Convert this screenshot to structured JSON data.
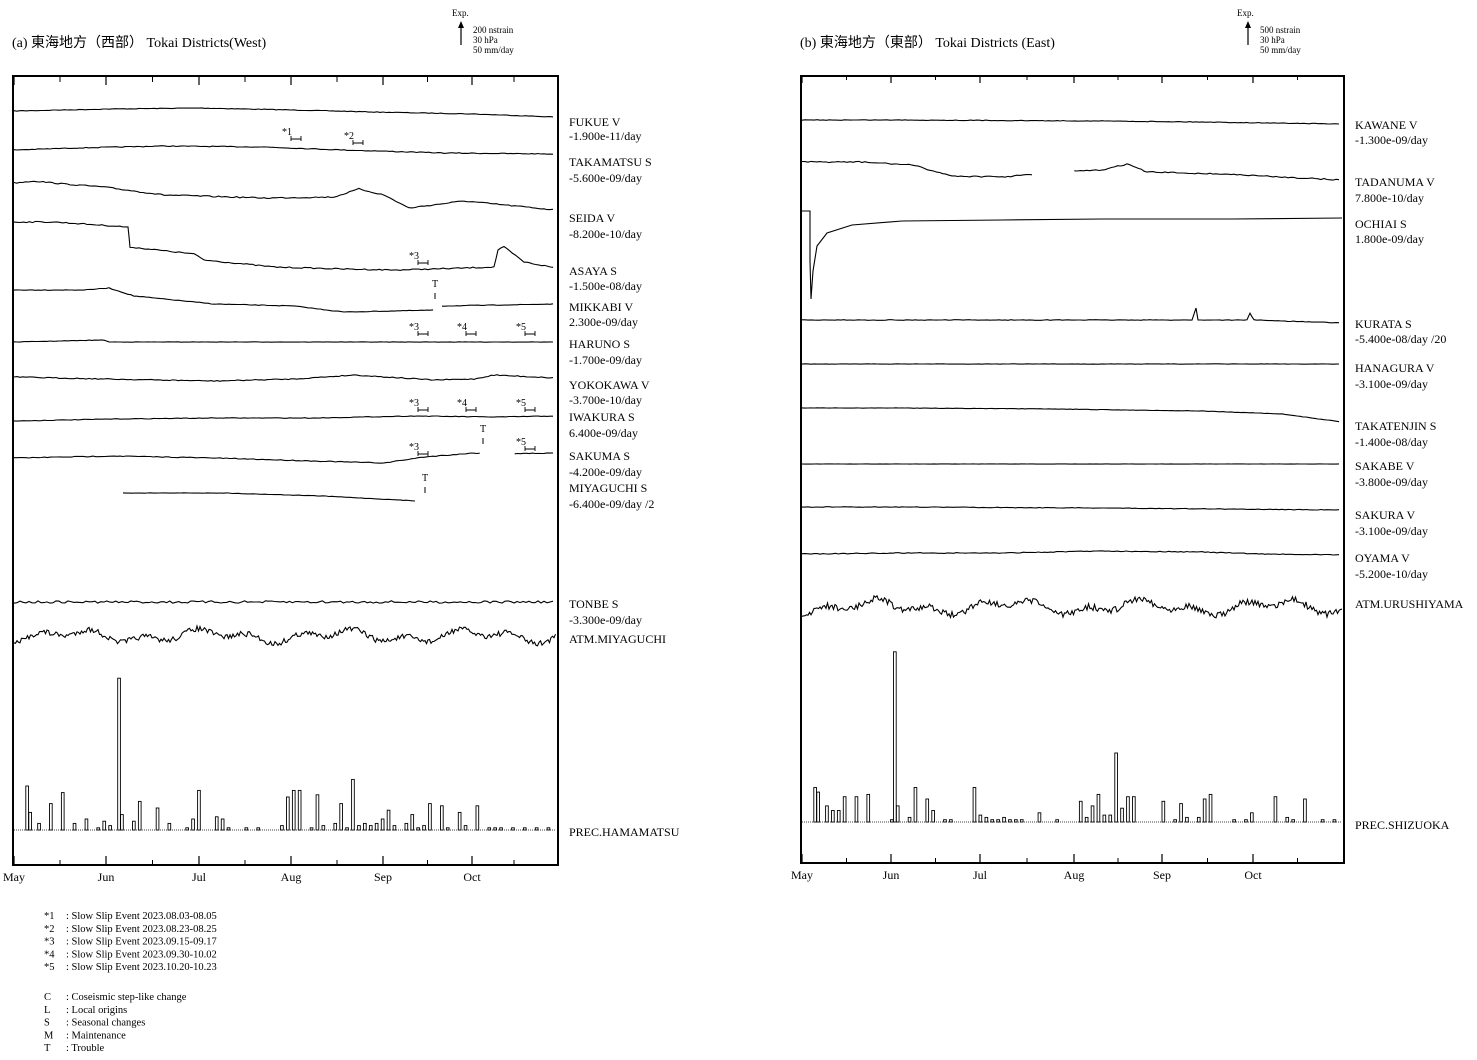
{
  "charts": [
    {
      "title": "(a) 東海地方（西部） Tokai Districts(West)",
      "scale": {
        "exp": "Exp.",
        "lines": [
          "200 nstrain",
          "30 hPa",
          "50 mm/day"
        ]
      },
      "months": [
        "May",
        "Jun",
        "Jul",
        "Aug",
        "Sep",
        "Oct"
      ],
      "stations": [
        {
          "name": "FUKUE V",
          "rate": "-1.900e-11/day"
        },
        {
          "name": "TAKAMATSU S",
          "rate": "-5.600e-09/day"
        },
        {
          "name": "SEIDA V",
          "rate": "-8.200e-10/day"
        },
        {
          "name": "ASAYA S",
          "rate": "-1.500e-08/day"
        },
        {
          "name": "MIKKABI V",
          "rate": "2.300e-09/day"
        },
        {
          "name": "HARUNO S",
          "rate": "-1.700e-09/day"
        },
        {
          "name": "YOKOKAWA V",
          "rate": "-3.700e-10/day"
        },
        {
          "name": "IWAKURA S",
          "rate": "6.400e-09/day"
        },
        {
          "name": "SAKUMA S",
          "rate": "-4.200e-09/day"
        },
        {
          "name": "MIYAGUCHI S",
          "rate": "-6.400e-09/day /2"
        },
        {
          "name": "TONBE S",
          "rate": "-3.300e-09/day"
        },
        {
          "name": "ATM.MIYAGUCHI",
          "rate": ""
        },
        {
          "name": "PREC.HAMAMATSU",
          "rate": ""
        }
      ],
      "marks": [
        "*1",
        "*2",
        "*3",
        "*4",
        "*5",
        "*3",
        "*4",
        "*5",
        "*3",
        "*5",
        "T",
        "T",
        "T"
      ]
    },
    {
      "title": "(b) 東海地方（東部） Tokai Districts (East)",
      "scale": {
        "exp": "Exp.",
        "lines": [
          "500 nstrain",
          "30 hPa",
          "50 mm/day"
        ]
      },
      "months": [
        "May",
        "Jun",
        "Jul",
        "Aug",
        "Sep",
        "Oct"
      ],
      "stations": [
        {
          "name": "KAWANE V",
          "rate": "-1.300e-09/day"
        },
        {
          "name": "TADANUMA V",
          "rate": "7.800e-10/day"
        },
        {
          "name": "OCHIAI S",
          "rate": "1.800e-09/day"
        },
        {
          "name": "KURATA S",
          "rate": "-5.400e-08/day /20"
        },
        {
          "name": "HANAGURA V",
          "rate": "-3.100e-09/day"
        },
        {
          "name": "TAKATENJIN S",
          "rate": "-1.400e-08/day"
        },
        {
          "name": "SAKABE V",
          "rate": "-3.800e-09/day"
        },
        {
          "name": "SAKURA V",
          "rate": "-3.100e-09/day"
        },
        {
          "name": "OYAMA V",
          "rate": "-5.200e-10/day"
        },
        {
          "name": "ATM.URUSHIYAMA",
          "rate": ""
        },
        {
          "name": "PREC.SHIZUOKA",
          "rate": ""
        }
      ]
    }
  ],
  "legend_events": [
    {
      "code": "*1",
      "text": ": Slow Slip Event  2023.08.03-08.05"
    },
    {
      "code": "*2",
      "text": ": Slow Slip Event  2023.08.23-08.25"
    },
    {
      "code": "*3",
      "text": ": Slow Slip Event  2023.09.15-09.17"
    },
    {
      "code": "*4",
      "text": ": Slow Slip Event  2023.09.30-10.02"
    },
    {
      "code": "*5",
      "text": ": Slow Slip Event  2023.10.20-10.23"
    }
  ],
  "legend_codes": [
    {
      "code": "C",
      "text": ": Coseismic step-like change"
    },
    {
      "code": "L",
      "text": ": Local origins"
    },
    {
      "code": "S",
      "text": ": Seasonal changes"
    },
    {
      "code": "M",
      "text": ": Maintenance"
    },
    {
      "code": "T",
      "text": ": Trouble"
    }
  ],
  "chart_data": [
    {
      "type": "line",
      "title": "(a) 東海地方（西部） Tokai Districts(West)",
      "x_categories": [
        "May",
        "Jun",
        "Jul",
        "Aug",
        "Sep",
        "Oct"
      ],
      "series": [
        {
          "name": "FUKUE V",
          "values": [
            0,
            0,
            0,
            0,
            0,
            0
          ]
        },
        {
          "name": "TAKAMATSU S",
          "values": [
            0,
            0,
            0,
            0,
            0,
            0
          ]
        },
        {
          "name": "SEIDA V",
          "values": [
            0,
            0,
            0,
            0,
            0,
            0
          ]
        },
        {
          "name": "ASAYA S",
          "values": [
            0,
            0,
            0,
            0,
            0,
            0
          ]
        },
        {
          "name": "MIKKABI V",
          "values": [
            0,
            0,
            0,
            0,
            0,
            0
          ]
        },
        {
          "name": "HARUNO S",
          "values": [
            0,
            0,
            0,
            0,
            0,
            0
          ]
        },
        {
          "name": "YOKOKAWA V",
          "values": [
            0,
            0,
            0,
            0,
            0,
            0
          ]
        },
        {
          "name": "IWAKURA S",
          "values": [
            0,
            0,
            0,
            0,
            0,
            0
          ]
        },
        {
          "name": "SAKUMA S",
          "values": [
            0,
            0,
            0,
            0,
            0,
            0
          ]
        },
        {
          "name": "MIYAGUCHI S",
          "values": [
            0,
            0,
            0,
            0,
            0,
            0
          ]
        },
        {
          "name": "TONBE S",
          "values": [
            0,
            0,
            0,
            0,
            0,
            0
          ]
        },
        {
          "name": "ATM.MIYAGUCHI",
          "values": [
            0,
            0,
            0,
            0,
            0,
            0
          ]
        }
      ],
      "precipitation": {
        "name": "PREC.HAMAMATSU",
        "unit": "mm/day",
        "days": [
          4,
          5,
          8,
          12,
          16,
          20,
          24,
          28,
          30,
          32,
          35,
          36,
          40,
          42,
          48,
          52,
          58,
          60,
          62,
          68,
          70,
          72,
          78,
          82,
          90,
          92,
          94,
          96,
          100,
          102,
          104,
          108,
          110,
          112,
          114,
          116,
          118,
          120,
          122,
          124,
          126,
          128,
          132,
          134,
          136,
          138,
          140,
          144,
          146,
          150,
          152,
          156,
          160,
          162,
          164,
          168,
          172,
          176,
          180
        ],
        "values": [
          20,
          8,
          3,
          12,
          17,
          3,
          5,
          1,
          4,
          2,
          69,
          7,
          4,
          13,
          10,
          3,
          1,
          5,
          18,
          6,
          5,
          1,
          1,
          1,
          2,
          15,
          18,
          18,
          1,
          16,
          2,
          3,
          12,
          1,
          23,
          2,
          3,
          2,
          3,
          5,
          9,
          2,
          3,
          7,
          1,
          2,
          12,
          11,
          1,
          8,
          2,
          11,
          1,
          1,
          1,
          1,
          1,
          1,
          1
        ]
      }
    },
    {
      "type": "line",
      "title": "(b) 東海地方（東部） Tokai Districts (East)",
      "x_categories": [
        "May",
        "Jun",
        "Jul",
        "Aug",
        "Sep",
        "Oct"
      ],
      "series": [
        {
          "name": "KAWANE V",
          "values": [
            0,
            0,
            0,
            0,
            0,
            0
          ]
        },
        {
          "name": "TADANUMA V",
          "values": [
            0,
            0,
            0,
            0,
            0,
            0
          ]
        },
        {
          "name": "OCHIAI S",
          "values": [
            0,
            0,
            0,
            0,
            0,
            0
          ]
        },
        {
          "name": "KURATA S",
          "values": [
            0,
            0,
            0,
            0,
            0,
            0
          ]
        },
        {
          "name": "HANAGURA V",
          "values": [
            0,
            0,
            0,
            0,
            0,
            0
          ]
        },
        {
          "name": "TAKATENJIN S",
          "values": [
            0,
            0,
            0,
            0,
            0,
            0
          ]
        },
        {
          "name": "SAKABE V",
          "values": [
            0,
            0,
            0,
            0,
            0,
            0
          ]
        },
        {
          "name": "SAKURA V",
          "values": [
            0,
            0,
            0,
            0,
            0,
            0
          ]
        },
        {
          "name": "OYAMA V",
          "values": [
            0,
            0,
            0,
            0,
            0,
            0
          ]
        },
        {
          "name": "ATM.URUSHIYAMA",
          "values": [
            0,
            0,
            0,
            0,
            0,
            0
          ]
        }
      ],
      "precipitation": {
        "name": "PREC.SHIZUOKA",
        "unit": "mm/day",
        "days": [
          4,
          5,
          8,
          10,
          12,
          14,
          18,
          22,
          30,
          31,
          32,
          36,
          38,
          42,
          44,
          48,
          50,
          58,
          60,
          62,
          64,
          66,
          68,
          70,
          72,
          74,
          80,
          86,
          94,
          96,
          98,
          100,
          102,
          104,
          106,
          108,
          110,
          112,
          122,
          126,
          128,
          130,
          134,
          136,
          138,
          146,
          150,
          152,
          160,
          164,
          166,
          170,
          176,
          180
        ],
        "values": [
          15,
          13,
          7,
          5,
          5,
          11,
          11,
          12,
          1,
          74,
          7,
          2,
          15,
          10,
          5,
          1,
          1,
          15,
          3,
          2,
          1,
          1,
          2,
          1,
          1,
          1,
          4,
          1,
          9,
          2,
          7,
          12,
          3,
          3,
          30,
          6,
          11,
          11,
          9,
          1,
          8,
          2,
          2,
          10,
          12,
          1,
          1,
          4,
          11,
          2,
          1,
          10,
          1,
          1
        ]
      }
    }
  ]
}
